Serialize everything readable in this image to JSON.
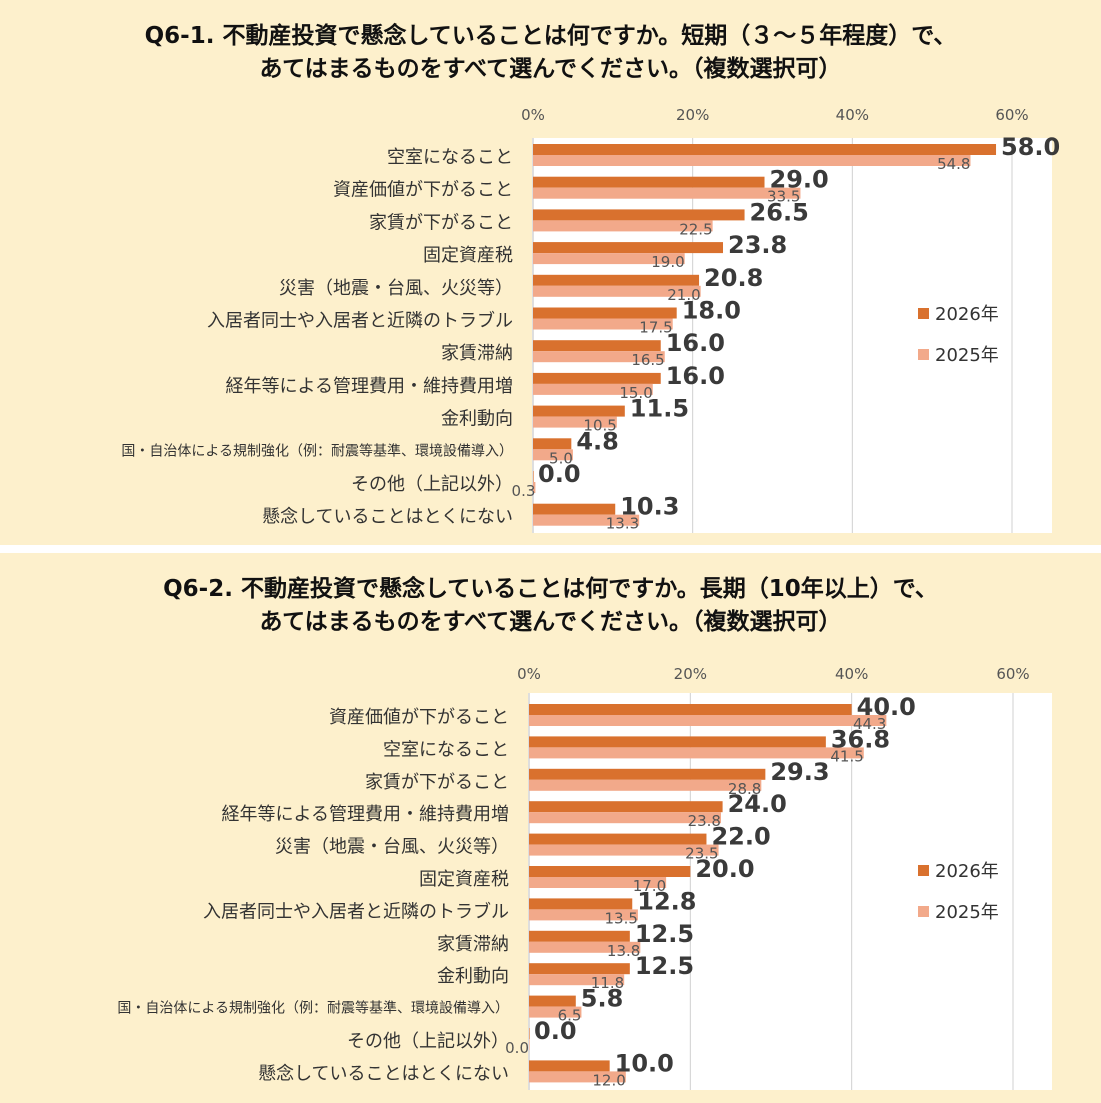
{
  "chart_data": [
    {
      "type": "bar",
      "orientation": "horizontal",
      "title_lines": [
        "Q6-1. 不動産投資で懸念していることは何ですか。短期（３～５年程度）で、",
        "あてはまるものをすべて選んでください。（複数選択可）"
      ],
      "xlim": [
        0,
        60
      ],
      "tick_labels": [
        "0%",
        "20%",
        "40%",
        "60%"
      ],
      "tick_values": [
        0,
        20,
        40,
        60
      ],
      "grid": true,
      "legend_position": "right",
      "categories": [
        "空室になること",
        "資産価値が下がること",
        "家賃が下がること",
        "固定資産税",
        "災害（地震・台風、火災等）",
        "入居者同士や入居者と近隣のトラブル",
        "家賃滞納",
        "経年等による管理費用・維持費用増",
        "金利動向",
        "国・自治体による規制強化（例：耐震等基準、環境設備導入）",
        "その他（上記以外）",
        "懸念していることはとくにない"
      ],
      "series": [
        {
          "name": "2026年",
          "color": "#d9712e",
          "values": [
            58.0,
            29.0,
            26.5,
            23.8,
            20.8,
            18.0,
            16.0,
            16.0,
            11.5,
            4.8,
            0.0,
            10.3
          ],
          "labels": [
            "58.0",
            "29.0",
            "26.5",
            "23.8",
            "20.8",
            "18.0",
            "16.0",
            "16.0",
            "11.5",
            "4.8",
            "0.0",
            "10.3"
          ]
        },
        {
          "name": "2025年",
          "color": "#f2a98a",
          "values": [
            54.8,
            33.5,
            22.5,
            19.0,
            21.0,
            17.5,
            16.5,
            15.0,
            10.5,
            5.0,
            0.3,
            13.3
          ],
          "labels": [
            "54.8",
            "33.5",
            "22.5",
            "19.0",
            "21.0",
            "17.5",
            "16.5",
            "15.0",
            "10.5",
            "5.0",
            "0.3",
            "13.3"
          ]
        }
      ]
    },
    {
      "type": "bar",
      "orientation": "horizontal",
      "title_lines": [
        "Q6-2. 不動産投資で懸念していることは何ですか。長期（10年以上）で、",
        "あてはまるものをすべて選んでください。（複数選択可）"
      ],
      "xlim": [
        0,
        60
      ],
      "tick_labels": [
        "0%",
        "20%",
        "40%",
        "60%"
      ],
      "tick_values": [
        0,
        20,
        40,
        60
      ],
      "grid": true,
      "legend_position": "right",
      "categories": [
        "資産価値が下がること",
        "空室になること",
        "家賃が下がること",
        "経年等による管理費用・維持費用増",
        "災害（地震・台風、火災等）",
        "固定資産税",
        "入居者同士や入居者と近隣のトラブル",
        "家賃滞納",
        "金利動向",
        "国・自治体による規制強化（例：耐震等基準、環境設備導入）",
        "その他（上記以外）",
        "懸念していることはとくにない"
      ],
      "series": [
        {
          "name": "2026年",
          "color": "#d9712e",
          "values": [
            40.0,
            36.8,
            29.3,
            24.0,
            22.0,
            20.0,
            12.8,
            12.5,
            12.5,
            5.8,
            0.0,
            10.0
          ],
          "labels": [
            "40.0",
            "36.8",
            "29.3",
            "24.0",
            "22.0",
            "20.0",
            "12.8",
            "12.5",
            "12.5",
            "5.8",
            "0.0",
            "10.0"
          ]
        },
        {
          "name": "2025年",
          "color": "#f2a98a",
          "values": [
            44.3,
            41.5,
            28.8,
            23.8,
            23.5,
            17.0,
            13.5,
            13.8,
            11.8,
            6.5,
            0.0,
            12.0
          ],
          "labels": [
            "44.3",
            "41.5",
            "28.8",
            "23.8",
            "23.5",
            "17.0",
            "13.5",
            "13.8",
            "11.8",
            "6.5",
            "0.0",
            "12.0"
          ]
        }
      ]
    }
  ]
}
